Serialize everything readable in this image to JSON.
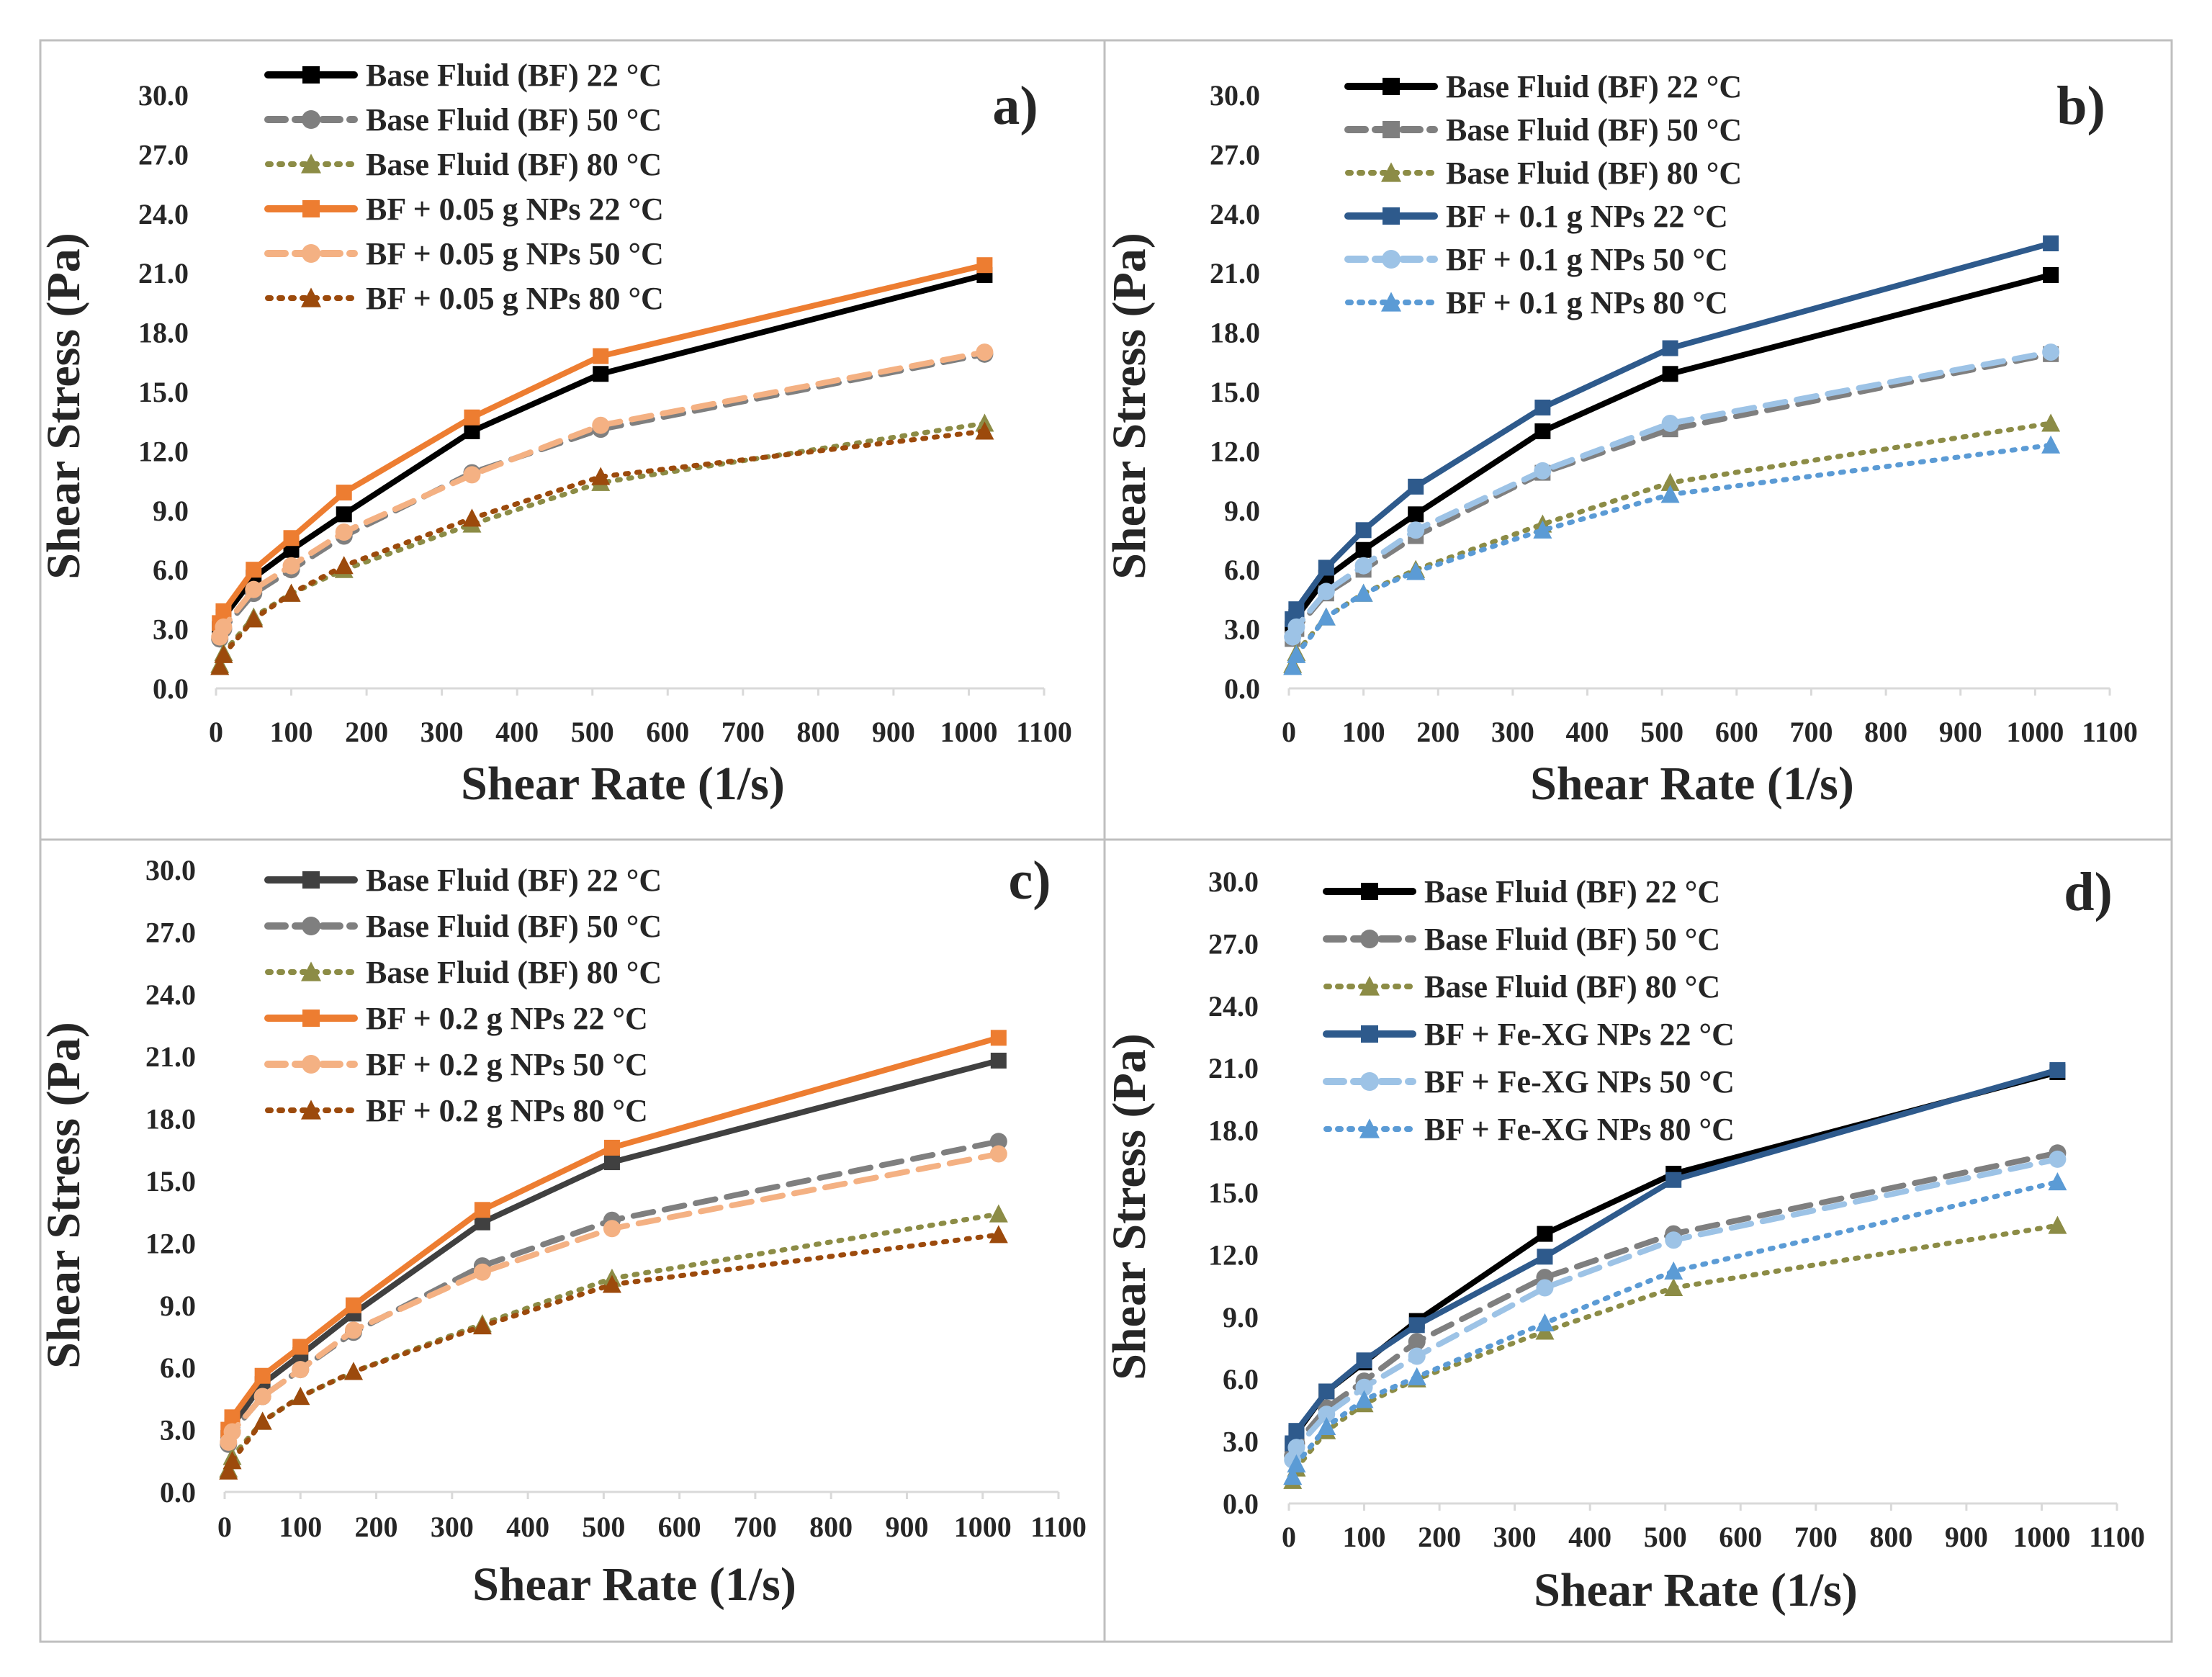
{
  "chart_data": [
    {
      "type": "line",
      "panel_label": "a)",
      "xlabel": "Shear Rate (1/s)",
      "ylabel": "Shear Stress (Pa)",
      "xlim": [
        0,
        1100
      ],
      "ylim": [
        0,
        30
      ],
      "xticks": [
        "0",
        "100",
        "200",
        "300",
        "400",
        "500",
        "600",
        "700",
        "800",
        "900",
        "1000",
        "1100"
      ],
      "yticks": [
        "0.0",
        "3.0",
        "6.0",
        "9.0",
        "12.0",
        "15.0",
        "18.0",
        "21.0",
        "24.0",
        "27.0",
        "30.0"
      ],
      "legend_position": "top-left",
      "x": [
        5,
        10,
        50,
        100,
        170,
        340,
        511,
        1021
      ],
      "series": [
        {
          "name": "Base Fluid (BF) 22 °C",
          "color": "#000000",
          "dash": "solid",
          "marker": "square",
          "values": [
            3.0,
            3.6,
            5.6,
            7.0,
            8.8,
            13.0,
            15.9,
            20.9
          ]
        },
        {
          "name": "Base Fluid (BF) 50 °C",
          "color": "#7f7f7f",
          "dash": "dash",
          "marker": "circle",
          "values": [
            2.5,
            3.0,
            4.8,
            6.0,
            7.7,
            10.9,
            13.1,
            16.9
          ]
        },
        {
          "name": "Base Fluid (BF) 80 °C",
          "color": "#8c8c46",
          "dash": "dot",
          "marker": "triangle",
          "values": [
            1.2,
            1.8,
            3.6,
            4.8,
            6.0,
            8.3,
            10.4,
            13.4
          ]
        },
        {
          "name": "BF + 0.05 g NPs 22 °C",
          "color": "#ed7d31",
          "dash": "solid",
          "marker": "square",
          "values": [
            3.3,
            3.9,
            6.0,
            7.6,
            9.9,
            13.7,
            16.8,
            21.4
          ]
        },
        {
          "name": "BF + 0.05 g NPs 50 °C",
          "color": "#f4b183",
          "dash": "dash",
          "marker": "circle",
          "values": [
            2.6,
            3.1,
            5.0,
            6.2,
            7.9,
            10.8,
            13.3,
            17.0
          ]
        },
        {
          "name": "BF + 0.05 g NPs 80 °C",
          "color": "#9c4a0c",
          "dash": "dot",
          "marker": "triangle",
          "values": [
            1.1,
            1.7,
            3.5,
            4.8,
            6.2,
            8.6,
            10.7,
            13.0
          ]
        }
      ]
    },
    {
      "type": "line",
      "panel_label": "b)",
      "xlabel": "Shear Rate (1/s)",
      "ylabel": "Shear Stress (Pa)",
      "xlim": [
        0,
        1100
      ],
      "ylim": [
        0,
        30
      ],
      "xticks": [
        "0",
        "100",
        "200",
        "300",
        "400",
        "500",
        "600",
        "700",
        "800",
        "900",
        "1000",
        "1100"
      ],
      "yticks": [
        "0.0",
        "3.0",
        "6.0",
        "9.0",
        "12.0",
        "15.0",
        "18.0",
        "21.0",
        "24.0",
        "27.0",
        "30.0"
      ],
      "legend_position": "top-left",
      "x": [
        5,
        10,
        50,
        100,
        170,
        340,
        511,
        1021
      ],
      "series": [
        {
          "name": "Base Fluid (BF) 22 °C",
          "color": "#000000",
          "dash": "solid",
          "marker": "square",
          "values": [
            3.0,
            3.6,
            5.6,
            7.0,
            8.8,
            13.0,
            15.9,
            20.9
          ]
        },
        {
          "name": "Base Fluid (BF) 50 °C",
          "color": "#7f7f7f",
          "dash": "dash",
          "marker": "square",
          "values": [
            2.5,
            3.0,
            4.8,
            6.0,
            7.7,
            10.9,
            13.1,
            16.9
          ]
        },
        {
          "name": "Base Fluid (BF) 80 °C",
          "color": "#8c8c46",
          "dash": "dot",
          "marker": "triangle",
          "values": [
            1.2,
            1.8,
            3.6,
            4.8,
            6.0,
            8.3,
            10.4,
            13.4
          ]
        },
        {
          "name": "BF + 0.1 g NPs 22 °C",
          "color": "#2e5a8c",
          "dash": "solid",
          "marker": "square",
          "values": [
            3.5,
            4.0,
            6.1,
            8.0,
            10.2,
            14.2,
            17.2,
            22.5
          ]
        },
        {
          "name": "BF + 0.1 g NPs 50 °C",
          "color": "#9dc3e6",
          "dash": "dash",
          "marker": "circle",
          "values": [
            2.6,
            3.1,
            4.9,
            6.2,
            8.0,
            11.0,
            13.4,
            17.0
          ]
        },
        {
          "name": "BF + 0.1 g NPs 80 °C",
          "color": "#5b9bd5",
          "dash": "dot",
          "marker": "triangle",
          "values": [
            1.1,
            1.7,
            3.6,
            4.8,
            5.9,
            8.0,
            9.8,
            12.3
          ]
        }
      ]
    },
    {
      "type": "line",
      "panel_label": "c)",
      "xlabel": "Shear Rate (1/s)",
      "ylabel": "Shear Stress (Pa)",
      "xlim": [
        0,
        1100
      ],
      "ylim": [
        0,
        30
      ],
      "xticks": [
        "0",
        "100",
        "200",
        "300",
        "400",
        "500",
        "600",
        "700",
        "800",
        "900",
        "1000",
        "1100"
      ],
      "yticks": [
        "0.0",
        "3.0",
        "6.0",
        "9.0",
        "12.0",
        "15.0",
        "18.0",
        "21.0",
        "24.0",
        "27.0",
        "30.0"
      ],
      "legend_position": "top-left",
      "x": [
        5,
        10,
        50,
        100,
        170,
        340,
        511,
        1021
      ],
      "series": [
        {
          "name": "Base Fluid (BF) 22 °C",
          "color": "#404040",
          "dash": "solid",
          "marker": "square",
          "values": [
            2.6,
            3.2,
            5.2,
            6.6,
            8.6,
            13.0,
            15.9,
            20.8
          ]
        },
        {
          "name": "Base Fluid (BF) 50 °C",
          "color": "#7f7f7f",
          "dash": "dash",
          "marker": "circle",
          "values": [
            2.3,
            2.9,
            4.6,
            5.9,
            7.7,
            10.9,
            13.1,
            16.9
          ]
        },
        {
          "name": "Base Fluid (BF) 80 °C",
          "color": "#8c8c46",
          "dash": "dot",
          "marker": "triangle",
          "values": [
            1.1,
            1.7,
            3.4,
            4.6,
            5.8,
            8.1,
            10.3,
            13.4
          ]
        },
        {
          "name": "BF + 0.2 g NPs 22 °C",
          "color": "#ed7d31",
          "dash": "solid",
          "marker": "square",
          "values": [
            3.0,
            3.6,
            5.6,
            7.0,
            9.0,
            13.6,
            16.6,
            21.9
          ]
        },
        {
          "name": "BF + 0.2 g NPs 50 °C",
          "color": "#f4b183",
          "dash": "dash",
          "marker": "circle",
          "values": [
            2.4,
            2.9,
            4.6,
            5.9,
            7.8,
            10.6,
            12.7,
            16.3
          ]
        },
        {
          "name": "BF + 0.2 g NPs 80 °C",
          "color": "#9c4a0c",
          "dash": "dot",
          "marker": "triangle",
          "values": [
            1.0,
            1.5,
            3.4,
            4.6,
            5.8,
            8.0,
            10.0,
            12.4
          ]
        }
      ]
    },
    {
      "type": "line",
      "panel_label": "d)",
      "xlabel": "Shear Rate (1/s)",
      "ylabel": "Shear Stress (Pa)",
      "xlim": [
        0,
        1100
      ],
      "ylim": [
        0,
        30
      ],
      "xticks": [
        "0",
        "100",
        "200",
        "300",
        "400",
        "500",
        "600",
        "700",
        "800",
        "900",
        "1000",
        "1100"
      ],
      "yticks": [
        "0.0",
        "3.0",
        "6.0",
        "9.0",
        "12.0",
        "15.0",
        "18.0",
        "21.0",
        "24.0",
        "27.0",
        "30.0"
      ],
      "legend_position": "top-left",
      "x": [
        5,
        10,
        50,
        100,
        170,
        340,
        511,
        1021
      ],
      "series": [
        {
          "name": "Base Fluid (BF) 22 °C",
          "color": "#000000",
          "dash": "solid",
          "marker": "square",
          "values": [
            2.8,
            3.4,
            5.4,
            6.8,
            8.8,
            13.0,
            15.9,
            20.8
          ]
        },
        {
          "name": "Base Fluid (BF) 50 °C",
          "color": "#7f7f7f",
          "dash": "dash",
          "marker": "circle",
          "values": [
            2.3,
            2.9,
            4.6,
            5.9,
            7.8,
            10.9,
            13.0,
            16.9
          ]
        },
        {
          "name": "Base Fluid (BF) 80 °C",
          "color": "#8c8c46",
          "dash": "dot",
          "marker": "triangle",
          "values": [
            1.1,
            1.7,
            3.5,
            4.8,
            6.0,
            8.3,
            10.4,
            13.4
          ]
        },
        {
          "name": "BF + Fe-XG NPs 22 °C",
          "color": "#2e5a8c",
          "dash": "solid",
          "marker": "square",
          "values": [
            2.9,
            3.5,
            5.4,
            6.9,
            8.6,
            11.9,
            15.6,
            20.9
          ]
        },
        {
          "name": "BF + Fe-XG NPs 50 °C",
          "color": "#9dc3e6",
          "dash": "dash",
          "marker": "circle",
          "values": [
            2.1,
            2.7,
            4.3,
            5.6,
            7.1,
            10.4,
            12.7,
            16.6
          ]
        },
        {
          "name": "BF + Fe-XG NPs 80 °C",
          "color": "#5b9bd5",
          "dash": "dot",
          "marker": "triangle",
          "values": [
            1.3,
            1.9,
            3.7,
            5.0,
            6.1,
            8.7,
            11.2,
            15.5
          ]
        }
      ]
    }
  ]
}
